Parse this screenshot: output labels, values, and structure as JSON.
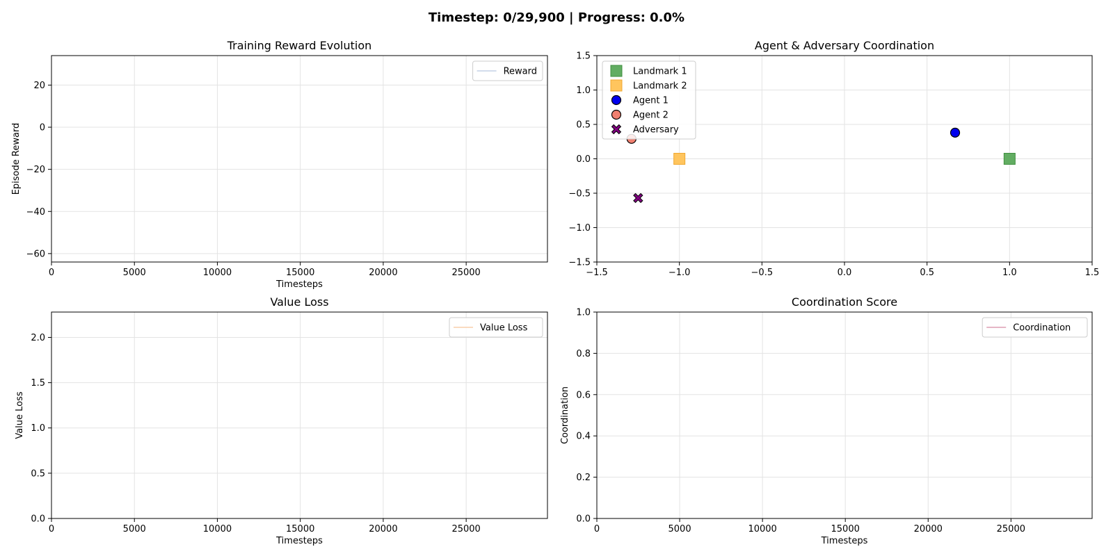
{
  "suptitle": "Timestep: 0/29,900 | Progress: 0.0%",
  "chart_data": [
    {
      "type": "line",
      "title": "Training Reward Evolution",
      "xlabel": "Timesteps",
      "ylabel": "Episode Reward",
      "xlim": [
        0,
        29900
      ],
      "ylim": [
        -64,
        34
      ],
      "xticks": [
        0,
        5000,
        10000,
        15000,
        20000,
        25000
      ],
      "yticks": [
        20,
        0,
        -20,
        -40,
        -60
      ],
      "ytick_labels": [
        "20",
        "0",
        "−20",
        "−40",
        "−60"
      ],
      "grid": true,
      "legend_position": "upper right",
      "series": [
        {
          "name": "Reward",
          "color": "#b7c7e0",
          "x": [],
          "y": []
        }
      ]
    },
    {
      "type": "scatter",
      "title": "Agent & Adversary Coordination",
      "xlabel": "",
      "ylabel": "",
      "xlim": [
        -1.5,
        1.5
      ],
      "ylim": [
        -1.5,
        1.5
      ],
      "xticks": [
        -1.5,
        -1.0,
        -0.5,
        0.0,
        0.5,
        1.0,
        1.5
      ],
      "xtick_labels": [
        "−1.5",
        "−1.0",
        "−0.5",
        "0.0",
        "0.5",
        "1.0",
        "1.5"
      ],
      "yticks": [
        1.5,
        1.0,
        0.5,
        0.0,
        -0.5,
        -1.0,
        -1.5
      ],
      "ytick_labels": [
        "1.5",
        "1.0",
        "0.5",
        "0.0",
        "−0.5",
        "−1.0",
        "−1.5"
      ],
      "grid": true,
      "legend_position": "upper left",
      "series": [
        {
          "name": "Landmark 1",
          "marker": "square",
          "color": "#62ad62",
          "edge": "#3f8f3f",
          "x": [
            1.0
          ],
          "y": [
            0.0
          ]
        },
        {
          "name": "Landmark 2",
          "marker": "square",
          "color": "#ffc55e",
          "edge": "#f0a830",
          "x": [
            -1.0
          ],
          "y": [
            0.0
          ]
        },
        {
          "name": "Agent 1",
          "marker": "circle",
          "color": "#0000ee",
          "edge": "#000000",
          "x": [
            0.67
          ],
          "y": [
            0.38
          ]
        },
        {
          "name": "Agent 2",
          "marker": "circle",
          "color": "#f08070",
          "edge": "#000000",
          "x": [
            -1.29
          ],
          "y": [
            0.29
          ]
        },
        {
          "name": "Adversary",
          "marker": "x",
          "color": "#800080",
          "edge": "#000000",
          "x": [
            -1.25
          ],
          "y": [
            -0.57
          ]
        }
      ]
    },
    {
      "type": "line",
      "title": "Value Loss",
      "xlabel": "Timesteps",
      "ylabel": "Value Loss",
      "xlim": [
        0,
        29900
      ],
      "ylim": [
        0,
        2.28
      ],
      "xticks": [
        0,
        5000,
        10000,
        15000,
        20000,
        25000
      ],
      "yticks": [
        2.0,
        1.5,
        1.0,
        0.5,
        0.0
      ],
      "ytick_labels": [
        "2.0",
        "1.5",
        "1.0",
        "0.5",
        "0.0"
      ],
      "grid": true,
      "legend_position": "upper right",
      "series": [
        {
          "name": "Value Loss",
          "color": "#f7c59b",
          "x": [],
          "y": []
        }
      ]
    },
    {
      "type": "line",
      "title": "Coordination Score",
      "xlabel": "Timesteps",
      "ylabel": "Coordination",
      "xlim": [
        0,
        29900
      ],
      "ylim": [
        0,
        1.0
      ],
      "xticks": [
        0,
        5000,
        10000,
        15000,
        20000,
        25000
      ],
      "yticks": [
        1.0,
        0.8,
        0.6,
        0.4,
        0.2,
        0.0
      ],
      "ytick_labels": [
        "1.0",
        "0.8",
        "0.6",
        "0.4",
        "0.2",
        "0.0"
      ],
      "grid": true,
      "legend_position": "upper right",
      "series": [
        {
          "name": "Coordination",
          "color": "#d88aa3",
          "x": [],
          "y": []
        }
      ]
    }
  ]
}
